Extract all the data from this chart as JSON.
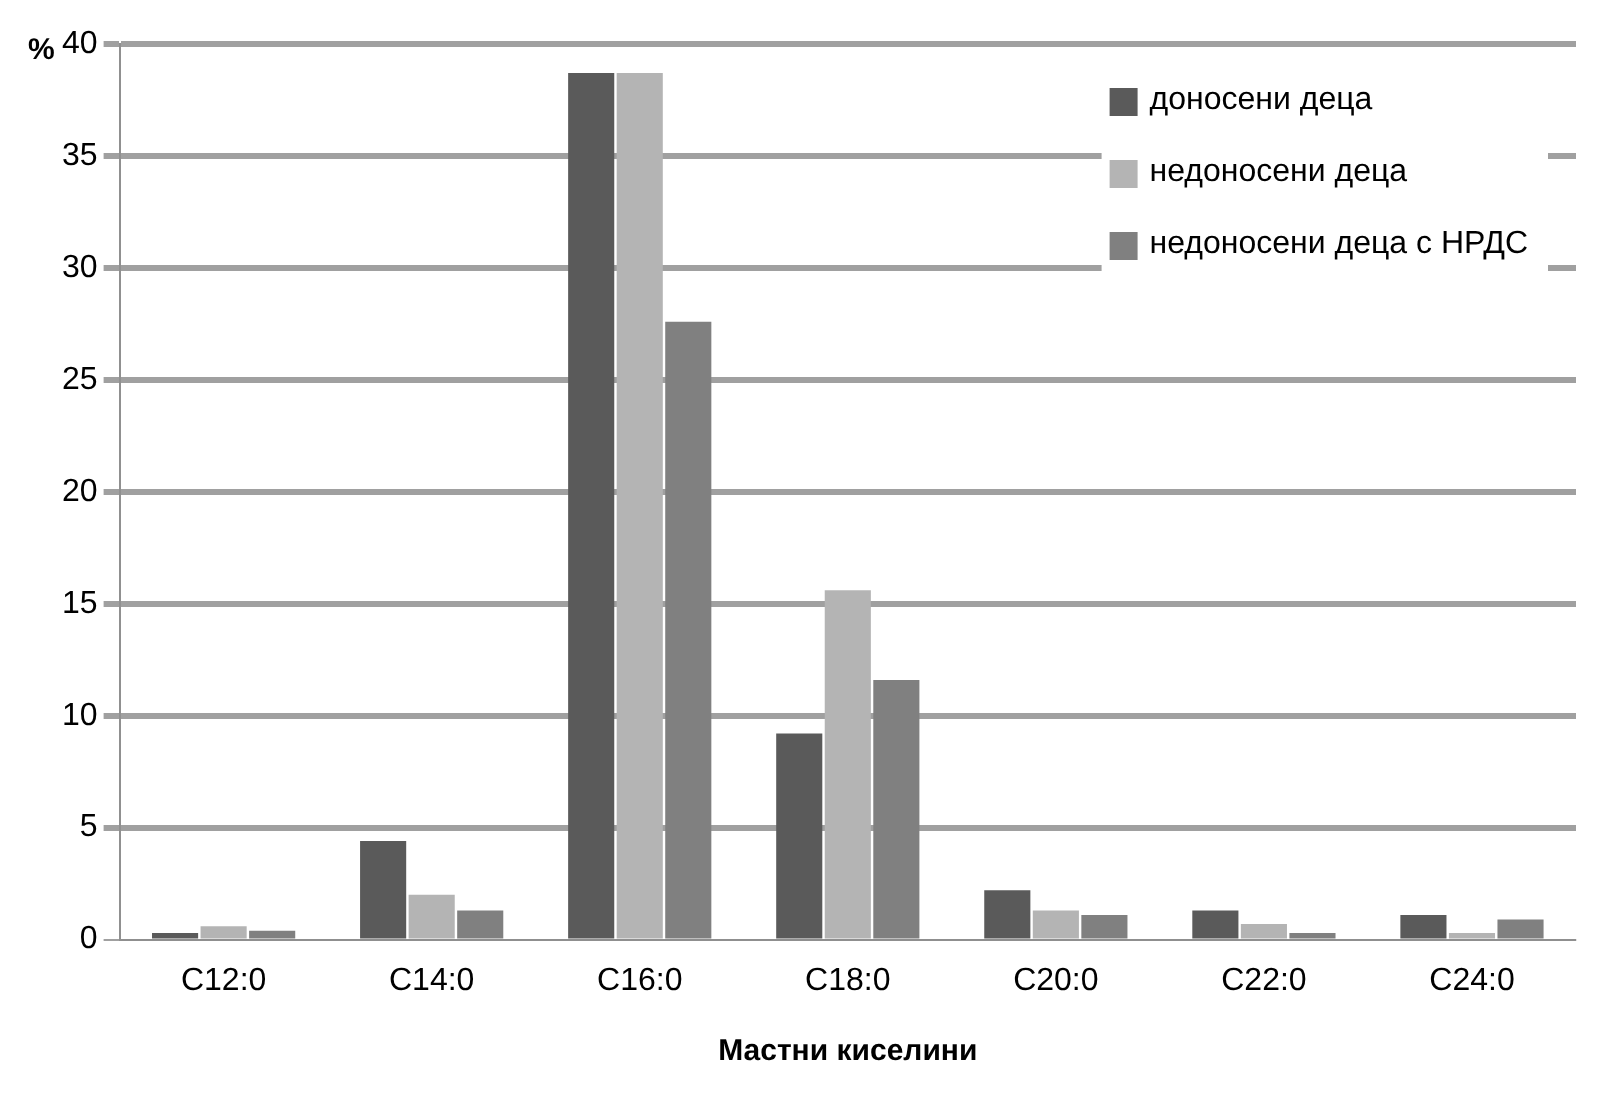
{
  "chart_data": {
    "type": "bar",
    "ylabel": "%",
    "xlabel": "Мастни киселини",
    "categories": [
      "C12:0",
      "C14:0",
      "C16:0",
      "C18:0",
      "C20:0",
      "C22:0",
      "C24:0"
    ],
    "series": [
      {
        "name": "доносени деца",
        "color": "#5a5a5a",
        "values": [
          0.3,
          4.4,
          38.7,
          9.2,
          2.2,
          1.3,
          1.1
        ]
      },
      {
        "name": "недоносени деца",
        "color": "#b4b4b4",
        "values": [
          0.6,
          2.0,
          38.7,
          15.6,
          1.3,
          0.7,
          0.3
        ]
      },
      {
        "name": "недоносени деца с НРДС",
        "color": "#808080",
        "values": [
          0.4,
          1.3,
          27.6,
          11.6,
          1.1,
          0.3,
          0.9
        ]
      }
    ],
    "ylim": [
      0,
      40
    ],
    "yticks": [
      0,
      5,
      10,
      15,
      20,
      25,
      30,
      35,
      40
    ],
    "grid": "y",
    "legend": "top right"
  }
}
